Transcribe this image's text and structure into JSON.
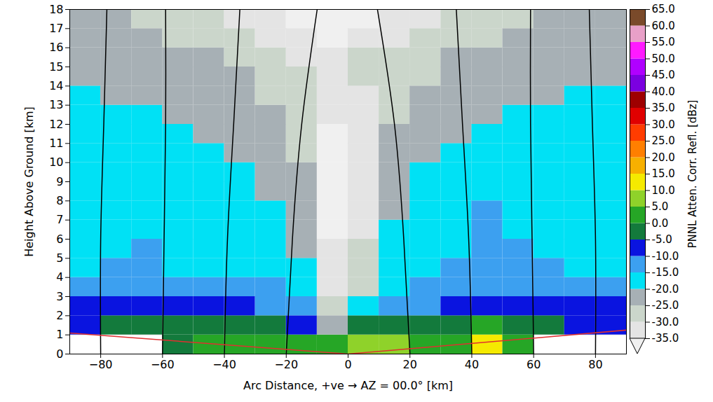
{
  "chart_data": {
    "type": "heatmap",
    "xlabel": "Arc Distance, +ve → AZ = 00.0° [km]",
    "ylabel": "Height Above Ground [km]",
    "xlim": [
      -90,
      90
    ],
    "xticks": [
      -80,
      -60,
      -40,
      -20,
      0,
      20,
      40,
      60,
      80
    ],
    "ylim": [
      0,
      18
    ],
    "yticks": [
      0,
      1,
      2,
      3,
      4,
      5,
      6,
      7,
      8,
      9,
      10,
      11,
      12,
      13,
      14,
      15,
      16,
      17,
      18
    ],
    "grid": true,
    "cell_x": [
      -90,
      -80,
      -70,
      -60,
      -50,
      -40,
      -30,
      -20,
      -10,
      0,
      10,
      20,
      30,
      40,
      50,
      60,
      70,
      80,
      90
    ],
    "cell_y": [
      0,
      1,
      2,
      3,
      4,
      5,
      6,
      7,
      8,
      9,
      10,
      11,
      12,
      13,
      14,
      15,
      16,
      17,
      18
    ],
    "cells": [
      [
        null,
        null,
        null,
        -2,
        0,
        1,
        2,
        0,
        3,
        6,
        8,
        3,
        2,
        12,
        1,
        null,
        null,
        null
      ],
      [
        -8,
        -3,
        -3,
        -2,
        -2,
        -3,
        -4,
        -8,
        -22,
        -5,
        -4,
        -2,
        -1,
        2,
        -1,
        -3,
        -6,
        -8
      ],
      [
        -9,
        -9,
        -8,
        -9,
        -9,
        -10,
        -11,
        -14,
        -30,
        -20,
        -15,
        -12,
        -10,
        -9,
        -9,
        -10,
        -10,
        -9
      ],
      [
        -12,
        -11,
        -12,
        -15,
        -15,
        -15,
        -15,
        -18,
        -32,
        -27,
        -18,
        -15,
        -14,
        -12,
        -11,
        -12,
        -12,
        -14
      ],
      [
        -16,
        -15,
        -13,
        -17,
        -17,
        -17,
        -17,
        -20,
        -33,
        -29,
        -18,
        -17,
        -15,
        -14,
        -14,
        -15,
        -16,
        -16
      ],
      [
        -17,
        -17,
        -15,
        -18,
        -18,
        -18,
        -18,
        -21,
        -33,
        -30,
        -19,
        -18,
        -16,
        -13,
        -15,
        -16,
        -17,
        -17
      ],
      [
        -18,
        -18,
        -17,
        -18,
        -18,
        -19,
        -19,
        -22,
        -36,
        -32,
        -20,
        -18,
        -17,
        -13,
        -16,
        -17,
        -18,
        -18
      ],
      [
        -18,
        -18,
        -18,
        -19,
        -19,
        -19,
        -20,
        -23,
        -36,
        -33,
        -21,
        -19,
        -18,
        -14,
        -17,
        -18,
        -18,
        -18
      ],
      [
        -19,
        -19,
        -19,
        -19,
        -19,
        -20,
        -21,
        -24,
        -37,
        -34,
        -22,
        -19,
        -19,
        -17,
        -18,
        -18,
        -19,
        -19
      ],
      [
        -19,
        -19,
        -19,
        -19,
        -20,
        -20,
        -22,
        -25,
        -37,
        -35,
        -23,
        -20,
        -19,
        -18,
        -19,
        -19,
        -19,
        -19
      ],
      [
        -19,
        -19,
        -19,
        -20,
        -20,
        -21,
        -23,
        -26,
        -37,
        -35,
        -24,
        -21,
        -20,
        -19,
        -19,
        -19,
        -19,
        -19
      ],
      [
        -19,
        -20,
        -20,
        -20,
        -21,
        -22,
        -24,
        -27,
        -36,
        -34,
        -25,
        -22,
        -21,
        -20,
        -20,
        -20,
        -19,
        -19
      ],
      [
        -20,
        -20,
        -20,
        -21,
        -22,
        -23,
        -25,
        -28,
        -34,
        -32,
        -26,
        -23,
        -22,
        -21,
        -20,
        -20,
        -20,
        -20
      ],
      [
        -20,
        -21,
        -21,
        -22,
        -23,
        -24,
        -26,
        -29,
        -33,
        -31,
        -27,
        -25,
        -23,
        -22,
        -21,
        -21,
        -20,
        -20
      ],
      [
        -21,
        -21,
        -22,
        -23,
        -24,
        -25,
        -27,
        -30,
        -32,
        -30,
        -28,
        -26,
        -24,
        -23,
        -22,
        -21,
        -21,
        -21
      ],
      [
        -21,
        -22,
        -23,
        -24,
        -25,
        -27,
        -29,
        -31,
        -32,
        -30,
        -29,
        -27,
        -25,
        -24,
        -23,
        -22,
        -21,
        -21
      ],
      [
        -22,
        -23,
        -24,
        -26,
        -27,
        -29,
        -31,
        -34,
        -36,
        -33,
        -31,
        -29,
        -27,
        -26,
        -24,
        -23,
        -22,
        -22
      ],
      [
        -23,
        -24,
        -26,
        -28,
        -29,
        -31,
        -33,
        -36,
        -37,
        -36,
        -34,
        -31,
        -29,
        -28,
        -26,
        -25,
        -23,
        -22
      ]
    ],
    "range_rings": [
      {
        "x": [
          -20,
          -18,
          -15,
          -10
        ],
        "y": [
          0,
          6,
          12,
          18
        ]
      },
      {
        "x": [
          20,
          18,
          15,
          9.5
        ],
        "y": [
          0,
          6,
          12,
          18
        ]
      },
      {
        "x": [
          -40,
          -39,
          -37,
          -35
        ],
        "y": [
          0,
          6,
          12,
          18
        ]
      },
      {
        "x": [
          40,
          39,
          37,
          35
        ],
        "y": [
          0,
          6,
          12,
          18
        ]
      },
      {
        "x": [
          -60,
          -59.5,
          -59,
          -59
        ],
        "y": [
          0,
          6,
          12,
          18
        ]
      },
      {
        "x": [
          60,
          59.5,
          59,
          59
        ],
        "y": [
          0,
          6,
          12,
          18
        ]
      },
      {
        "x": [
          -80,
          -80,
          -79,
          -78
        ],
        "y": [
          0,
          6,
          12,
          18
        ]
      },
      {
        "x": [
          80,
          80,
          79,
          78
        ],
        "y": [
          0,
          6,
          12,
          18
        ]
      }
    ],
    "beam_floor": {
      "x": [
        -90,
        0,
        90
      ],
      "y": [
        1.1,
        0,
        1.25
      ]
    },
    "colorbar_label": "PNNL Atten. Corr. Refl. [dBz]",
    "colorbar_range": [
      -35,
      65
    ],
    "colorbar_ticks": [
      {
        "value": -35,
        "label": "-35.0"
      },
      {
        "value": -30,
        "label": "-30.0"
      },
      {
        "value": -25,
        "label": "-25.0"
      },
      {
        "value": -20,
        "label": "-20.0"
      },
      {
        "value": -15,
        "label": "-15.0"
      },
      {
        "value": -10,
        "label": "-10.0"
      },
      {
        "value": -5,
        "label": "-5.0"
      },
      {
        "value": 0,
        "label": "0.0"
      },
      {
        "value": 5,
        "label": "5.0"
      },
      {
        "value": 10,
        "label": "10.0"
      },
      {
        "value": 15,
        "label": "15.0"
      },
      {
        "value": 20,
        "label": "20.0"
      },
      {
        "value": 25,
        "label": "25.0"
      },
      {
        "value": 30,
        "label": "30.0"
      },
      {
        "value": 35,
        "label": "35.0"
      },
      {
        "value": 40,
        "label": "40.0"
      },
      {
        "value": 45,
        "label": "45.0"
      },
      {
        "value": 50,
        "label": "50.0"
      },
      {
        "value": 55,
        "label": "55.0"
      },
      {
        "value": 60,
        "label": "60.0"
      },
      {
        "value": 65,
        "label": "65.0"
      }
    ],
    "colors": [
      "#e4e4e4",
      "#cbd6cb",
      "#a7b0b5",
      "#00e1f5",
      "#3ca0f0",
      "#0a14e0",
      "#137a3c",
      "#26a626",
      "#8fd22a",
      "#f5ea00",
      "#f7b000",
      "#ff7f00",
      "#ff3c00",
      "#e00000",
      "#9e0000",
      "#7b00e0",
      "#b000ff",
      "#ff1aff",
      "#e8a0c8",
      "#7a4a2a"
    ]
  }
}
